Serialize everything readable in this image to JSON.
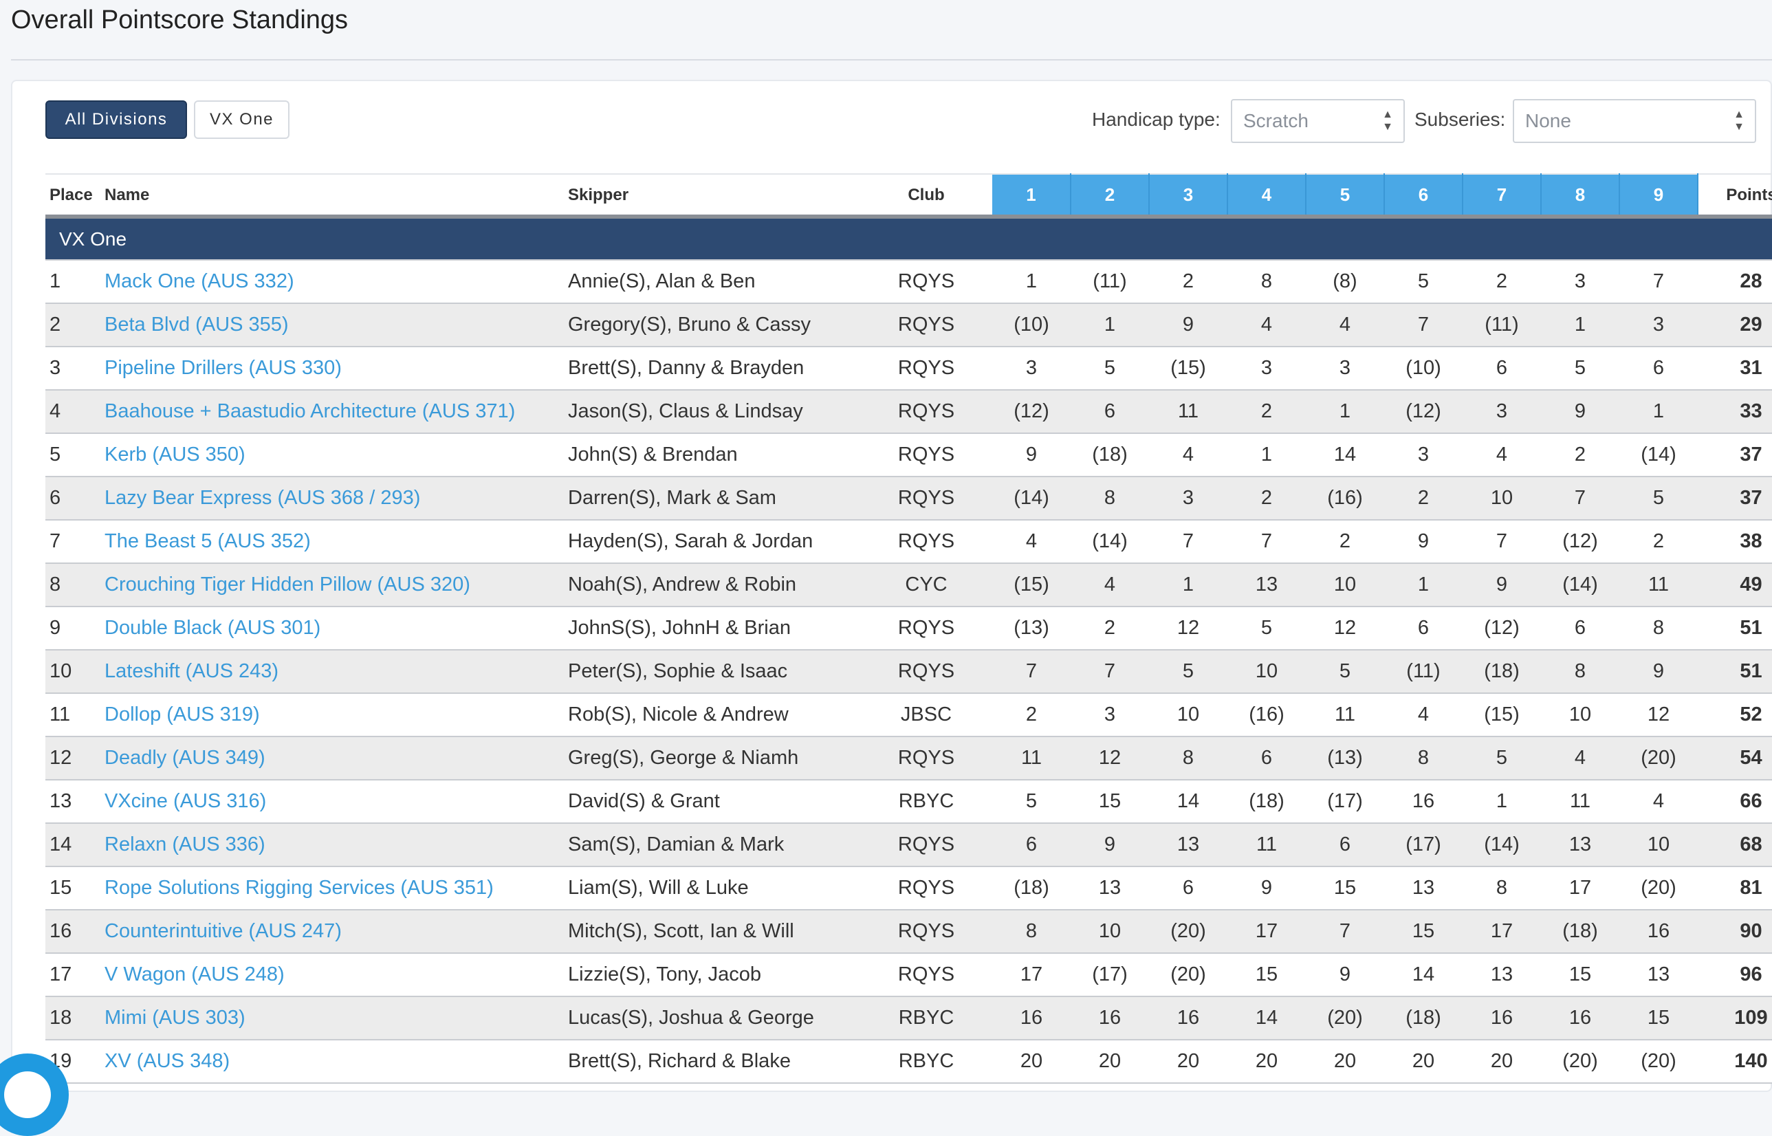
{
  "page": {
    "title": "Overall Pointscore Standings"
  },
  "divisions": {
    "all_label": "All Divisions",
    "vxone_label": "VX One"
  },
  "filters": {
    "handicap_label": "Handicap type:",
    "handicap_value": "Scratch",
    "subseries_label": "Subseries:",
    "subseries_value": "None"
  },
  "table": {
    "headers": {
      "place": "Place",
      "name": "Name",
      "skipper": "Skipper",
      "club": "Club",
      "points": "Points"
    },
    "races": [
      "1",
      "2",
      "3",
      "4",
      "5",
      "6",
      "7",
      "8",
      "9"
    ],
    "group_label": "VX One",
    "rows": [
      {
        "place": "1",
        "name": "Mack One (AUS 332)",
        "skipper": "Annie(S), Alan & Ben",
        "club": "RQYS",
        "r": [
          "1",
          "(11)",
          "2",
          "8",
          "(8)",
          "5",
          "2",
          "3",
          "7"
        ],
        "points": "28"
      },
      {
        "place": "2",
        "name": "Beta Blvd (AUS 355)",
        "skipper": "Gregory(S), Bruno & Cassy",
        "club": "RQYS",
        "r": [
          "(10)",
          "1",
          "9",
          "4",
          "4",
          "7",
          "(11)",
          "1",
          "3"
        ],
        "points": "29"
      },
      {
        "place": "3",
        "name": "Pipeline Drillers (AUS 330)",
        "skipper": "Brett(S), Danny & Brayden",
        "club": "RQYS",
        "r": [
          "3",
          "5",
          "(15)",
          "3",
          "3",
          "(10)",
          "6",
          "5",
          "6"
        ],
        "points": "31"
      },
      {
        "place": "4",
        "name": "Baahouse + Baastudio Architecture (AUS 371)",
        "skipper": "Jason(S), Claus & Lindsay",
        "club": "RQYS",
        "r": [
          "(12)",
          "6",
          "11",
          "2",
          "1",
          "(12)",
          "3",
          "9",
          "1"
        ],
        "points": "33"
      },
      {
        "place": "5",
        "name": "Kerb (AUS 350)",
        "skipper": "John(S) & Brendan",
        "club": "RQYS",
        "r": [
          "9",
          "(18)",
          "4",
          "1",
          "14",
          "3",
          "4",
          "2",
          "(14)"
        ],
        "points": "37"
      },
      {
        "place": "6",
        "name": "Lazy Bear Express (AUS 368 / 293)",
        "skipper": "Darren(S), Mark & Sam",
        "club": "RQYS",
        "r": [
          "(14)",
          "8",
          "3",
          "2",
          "(16)",
          "2",
          "10",
          "7",
          "5"
        ],
        "points": "37"
      },
      {
        "place": "7",
        "name": "The Beast 5 (AUS 352)",
        "skipper": "Hayden(S), Sarah & Jordan",
        "club": "RQYS",
        "r": [
          "4",
          "(14)",
          "7",
          "7",
          "2",
          "9",
          "7",
          "(12)",
          "2"
        ],
        "points": "38"
      },
      {
        "place": "8",
        "name": "Crouching Tiger Hidden Pillow (AUS 320)",
        "skipper": "Noah(S), Andrew & Robin",
        "club": "CYC",
        "r": [
          "(15)",
          "4",
          "1",
          "13",
          "10",
          "1",
          "9",
          "(14)",
          "11"
        ],
        "points": "49"
      },
      {
        "place": "9",
        "name": "Double Black (AUS 301)",
        "skipper": "JohnS(S), JohnH & Brian",
        "club": "RQYS",
        "r": [
          "(13)",
          "2",
          "12",
          "5",
          "12",
          "6",
          "(12)",
          "6",
          "8"
        ],
        "points": "51"
      },
      {
        "place": "10",
        "name": "Lateshift (AUS 243)",
        "skipper": "Peter(S), Sophie & Isaac",
        "club": "RQYS",
        "r": [
          "7",
          "7",
          "5",
          "10",
          "5",
          "(11)",
          "(18)",
          "8",
          "9"
        ],
        "points": "51"
      },
      {
        "place": "11",
        "name": "Dollop (AUS 319)",
        "skipper": "Rob(S), Nicole & Andrew",
        "club": "JBSC",
        "r": [
          "2",
          "3",
          "10",
          "(16)",
          "11",
          "4",
          "(15)",
          "10",
          "12"
        ],
        "points": "52"
      },
      {
        "place": "12",
        "name": "Deadly (AUS 349)",
        "skipper": "Greg(S), George & Niamh",
        "club": "RQYS",
        "r": [
          "11",
          "12",
          "8",
          "6",
          "(13)",
          "8",
          "5",
          "4",
          "(20)"
        ],
        "points": "54"
      },
      {
        "place": "13",
        "name": "VXcine (AUS 316)",
        "skipper": "David(S) & Grant",
        "club": "RBYC",
        "r": [
          "5",
          "15",
          "14",
          "(18)",
          "(17)",
          "16",
          "1",
          "11",
          "4"
        ],
        "points": "66"
      },
      {
        "place": "14",
        "name": "Relaxn (AUS 336)",
        "skipper": "Sam(S), Damian & Mark",
        "club": "RQYS",
        "r": [
          "6",
          "9",
          "13",
          "11",
          "6",
          "(17)",
          "(14)",
          "13",
          "10"
        ],
        "points": "68"
      },
      {
        "place": "15",
        "name": "Rope Solutions Rigging Services (AUS 351)",
        "skipper": "Liam(S), Will & Luke",
        "club": "RQYS",
        "r": [
          "(18)",
          "13",
          "6",
          "9",
          "15",
          "13",
          "8",
          "17",
          "(20)"
        ],
        "points": "81"
      },
      {
        "place": "16",
        "name": "Counterintuitive (AUS 247)",
        "skipper": "Mitch(S), Scott, Ian & Will",
        "club": "RQYS",
        "r": [
          "8",
          "10",
          "(20)",
          "17",
          "7",
          "15",
          "17",
          "(18)",
          "16"
        ],
        "points": "90"
      },
      {
        "place": "17",
        "name": "V Wagon (AUS 248)",
        "skipper": "Lizzie(S), Tony, Jacob",
        "club": "RQYS",
        "r": [
          "17",
          "(17)",
          "(20)",
          "15",
          "9",
          "14",
          "13",
          "15",
          "13"
        ],
        "points": "96"
      },
      {
        "place": "18",
        "name": "Mimi (AUS 303)",
        "skipper": "Lucas(S), Joshua & George",
        "club": "RBYC",
        "r": [
          "16",
          "16",
          "16",
          "14",
          "(20)",
          "(18)",
          "16",
          "16",
          "15"
        ],
        "points": "109"
      },
      {
        "place": "19",
        "name": "XV (AUS 348)",
        "skipper": "Brett(S), Richard & Blake",
        "club": "RBYC",
        "r": [
          "20",
          "20",
          "20",
          "20",
          "20",
          "20",
          "20",
          "(20)",
          "(20)"
        ],
        "points": "140"
      }
    ]
  },
  "colors": {
    "accent": "#4aa8e6",
    "header_dark": "#2d4a72",
    "link": "#3a9ad9"
  }
}
